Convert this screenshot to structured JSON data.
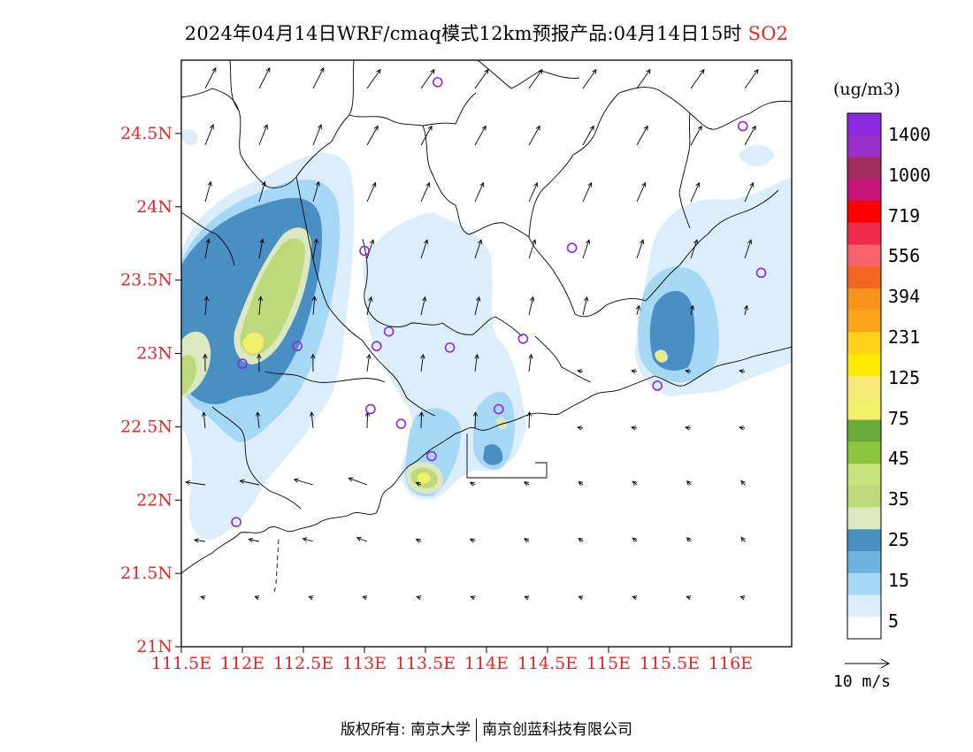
{
  "title": {
    "main": "2024年04月14日WRF/cmaq模式12km预报产品:04月14日15时",
    "species": "SO2"
  },
  "colors": {
    "axis_label": "#e0282a",
    "station": "#8a2be2",
    "colorbar": [
      "#ffffff",
      "#dceefb",
      "#a6d8f5",
      "#6cb3e0",
      "#4a8fc4",
      "#dce9c0",
      "#bdda7a",
      "#c6e27d",
      "#8cc63f",
      "#6aaa3a",
      "#f0f06a",
      "#f6e97a",
      "#ffea00",
      "#fcd31b",
      "#fba61a",
      "#f7941d",
      "#f26522",
      "#f6636a",
      "#ee2a4d",
      "#ff0000",
      "#c6157a",
      "#a12d5f",
      "#9b30c8",
      "#8a2be2"
    ]
  },
  "axes": {
    "lat_ticks": [
      "24.5N",
      "24N",
      "23.5N",
      "23N",
      "22.5N",
      "22N",
      "21.5N",
      "21N"
    ],
    "lon_ticks": [
      "111.5E",
      "112E",
      "112.5E",
      "113E",
      "113.5E",
      "114E",
      "114.5E",
      "115E",
      "115.5E",
      "116E"
    ]
  },
  "colorbar": {
    "unit": "(ug/m3)",
    "labels": [
      "1400",
      "1000",
      "719",
      "556",
      "394",
      "231",
      "125",
      "75",
      "45",
      "35",
      "25",
      "15",
      "5"
    ]
  },
  "wind_reference": {
    "label": "10 m/s",
    "icon": "arrow-right-icon"
  },
  "footer": {
    "left": "版权所有: 南京大学",
    "right": "南京创蓝科技有限公司"
  },
  "stations": [
    [
      113.6,
      24.85
    ],
    [
      116.1,
      24.55
    ],
    [
      113.0,
      23.7
    ],
    [
      114.7,
      23.72
    ],
    [
      116.25,
      23.55
    ],
    [
      112.45,
      23.05
    ],
    [
      113.1,
      23.05
    ],
    [
      113.2,
      23.15
    ],
    [
      113.7,
      23.04
    ],
    [
      114.3,
      23.1
    ],
    [
      112.0,
      22.93
    ],
    [
      115.4,
      22.78
    ],
    [
      113.05,
      22.62
    ],
    [
      113.3,
      22.52
    ],
    [
      114.1,
      22.62
    ],
    [
      113.55,
      22.3
    ],
    [
      111.95,
      21.85
    ]
  ]
}
